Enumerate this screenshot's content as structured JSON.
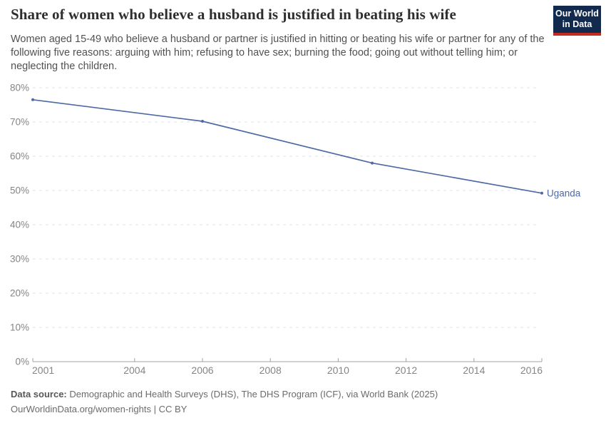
{
  "header": {
    "title": "Share of women who believe a husband is justified in beating his wife",
    "subtitle": "Women aged 15-49 who believe a husband or partner is justified in hitting or beating his wife or partner for any of the following five reasons: arguing with him; refusing to have sex; burning the food; going out without telling him; or neglecting the children.",
    "logo": {
      "line1": "Our World",
      "line2": "in Data",
      "bg_color": "#122a4e",
      "bar_color": "#c32a20"
    }
  },
  "chart_data": {
    "type": "line",
    "title": "Share of women who believe a husband is justified in beating his wife",
    "xlabel": "",
    "ylabel": "",
    "xlim": [
      2001,
      2016
    ],
    "ylim": [
      0,
      80
    ],
    "grid": "horizontal-dashed",
    "legend_position": "end-of-line",
    "xticks": [
      2001,
      2004,
      2006,
      2008,
      2010,
      2012,
      2014,
      2016
    ],
    "yticks": [
      0,
      10,
      20,
      30,
      40,
      50,
      60,
      70,
      80
    ],
    "ytick_labels": [
      "0%",
      "10%",
      "20%",
      "30%",
      "40%",
      "50%",
      "60%",
      "70%",
      "80%"
    ],
    "series": [
      {
        "name": "Uganda",
        "color": "#4d6aa3",
        "x": [
          2001,
          2006,
          2011,
          2016
        ],
        "values": [
          76.5,
          70.2,
          58.0,
          49.2
        ]
      }
    ]
  },
  "footer": {
    "datasource_label": "Data source:",
    "datasource_text": " Demographic and Health Surveys (DHS), The DHS Program (ICF), via World Bank (2025)",
    "url_line": "OurWorldinData.org/women-rights | CC BY"
  },
  "colors": {
    "line": "#4d6aa3",
    "gridline": "#e2e2e2",
    "axis": "#a3a3a3",
    "tick_text": "#858585"
  }
}
